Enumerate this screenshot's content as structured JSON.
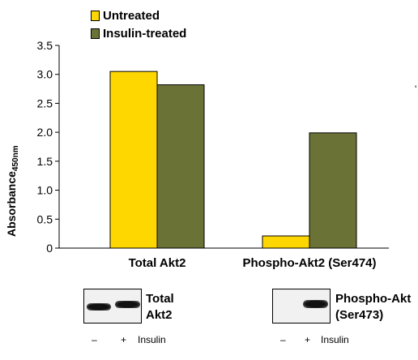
{
  "chart_data": {
    "type": "bar",
    "title": "",
    "xlabel": "",
    "ylabel": "Absorbance",
    "ylabel_sub": "450nm",
    "ylim": [
      0,
      3.5
    ],
    "yticks": [
      "0",
      "0.5",
      "1.0",
      "1.5",
      "2.0",
      "2.5",
      "3.0",
      "3.5"
    ],
    "categories": [
      "Total Akt2",
      "Phospho-Akt2 (Ser474)"
    ],
    "series": [
      {
        "name": "Untreated",
        "color": "#FFD700",
        "values": [
          3.05,
          0.21
        ]
      },
      {
        "name": "Insulin-treated",
        "color": "#6B7236",
        "values": [
          2.82,
          1.99
        ]
      }
    ],
    "legend_position": "top-left",
    "grid": false
  },
  "blots": [
    {
      "label_line1": "Total",
      "label_line2": "Akt2",
      "minus": "–",
      "plus": "+",
      "treatment": "Insulin"
    },
    {
      "label_line1": "Phospho-Akt",
      "label_line2": "(Ser473)",
      "minus": "–",
      "plus": "+",
      "treatment": "Insulin"
    }
  ],
  "stray_mark": "'"
}
